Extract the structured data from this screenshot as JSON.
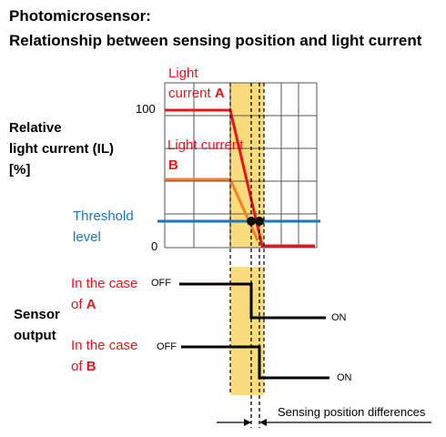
{
  "title_line1": "Photomicrosensor:",
  "title_line2": "Relationship between sensing position and light current",
  "y_axis_label": {
    "line1": "Relative",
    "line2": "light current (IL)",
    "line3": "[%]"
  },
  "tick_100": "100",
  "tick_0": "0",
  "series_a_label": {
    "line1": "Light",
    "line2": "current ",
    "letter": "A"
  },
  "series_b_label": {
    "line1": "Light current",
    "letter": "B"
  },
  "threshold_label": {
    "line1": "Threshold",
    "line2": "level"
  },
  "sensor_output_label": {
    "line1": "Sensor",
    "line2": "output"
  },
  "case_a_label": {
    "line1": "In the case",
    "line2": "of ",
    "letter": "A"
  },
  "case_b_label": {
    "line1": "In the case",
    "line2": " of ",
    "letter": "B"
  },
  "off_label": "OFF",
  "on_label": "ON",
  "difference_label": "Sensing position differences",
  "colors": {
    "series_a": "#e8141b",
    "series_b": "#f57e20",
    "threshold": "#1a75bd",
    "sensing_zone": "#fbdc7d"
  }
}
